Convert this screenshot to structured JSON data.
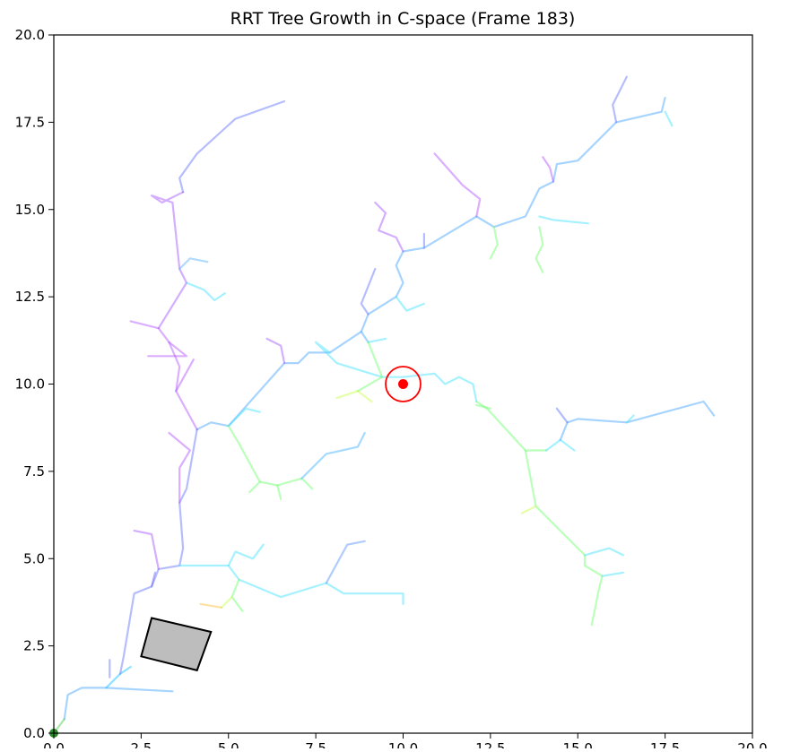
{
  "chart_data": {
    "type": "scatter",
    "title": "RRT Tree Growth in C-space (Frame 183)",
    "xlabel": "",
    "ylabel": "",
    "xlim": [
      0,
      20
    ],
    "ylim": [
      0,
      20
    ],
    "grid": false,
    "x_ticks": [
      0,
      2.5,
      5,
      7.5,
      10,
      12.5,
      15,
      17.5,
      20
    ],
    "x_tick_labels": [
      "0.0",
      "2.5",
      "5.0",
      "7.5",
      "10.0",
      "12.5",
      "15.0",
      "17.5",
      "20.0"
    ],
    "y_ticks": [
      0,
      2.5,
      5,
      7.5,
      10,
      12.5,
      15,
      17.5,
      20
    ],
    "y_tick_labels": [
      "0.0",
      "2.5",
      "5.0",
      "7.5",
      "10.0",
      "12.5",
      "15.0",
      "17.5",
      "20.0"
    ],
    "start": {
      "x": 0.0,
      "y": 0.0,
      "color": "#2a8a2a"
    },
    "goal": {
      "x": 10.0,
      "y": 10.0,
      "radius": 0.5,
      "color": "#ff0000"
    },
    "obstacle": {
      "points": [
        [
          2.8,
          3.3
        ],
        [
          4.5,
          2.9
        ],
        [
          4.1,
          1.8
        ],
        [
          2.5,
          2.2
        ]
      ],
      "fill": "#bdbdbd",
      "edge": "#000000"
    },
    "tree_edges": [
      {
        "c": "#3ccc33",
        "p": [
          [
            0,
            0
          ],
          [
            0.3,
            0.4
          ]
        ]
      },
      {
        "c": "#3aa0ff",
        "p": [
          [
            0.3,
            0.4
          ],
          [
            0.4,
            1.1
          ],
          [
            0.8,
            1.3
          ],
          [
            1.5,
            1.3
          ],
          [
            3.4,
            1.2
          ]
        ]
      },
      {
        "c": "#00bfff",
        "p": [
          [
            1.5,
            1.3
          ],
          [
            1.9,
            1.7
          ],
          [
            2.2,
            1.9
          ]
        ]
      },
      {
        "c": "#5a6cff",
        "p": [
          [
            1.9,
            1.7
          ],
          [
            2.0,
            2.2
          ],
          [
            2.3,
            4.0
          ],
          [
            2.8,
            4.2
          ],
          [
            3.0,
            4.7
          ],
          [
            3.6,
            4.8
          ],
          [
            3.7,
            5.3
          ],
          [
            3.6,
            6.6
          ],
          [
            3.8,
            7.0
          ],
          [
            4.1,
            8.7
          ]
        ]
      },
      {
        "c": "#5a6cff",
        "p": [
          [
            1.6,
            1.6
          ],
          [
            1.6,
            2.1
          ]
        ]
      },
      {
        "c": "#9f4cff",
        "p": [
          [
            3.0,
            4.7
          ],
          [
            2.8,
            5.7
          ],
          [
            2.3,
            5.8
          ]
        ]
      },
      {
        "c": "#6a5cff",
        "p": [
          [
            2.8,
            4.2
          ],
          [
            2.9,
            4.6
          ]
        ]
      },
      {
        "c": "#38e0ff",
        "p": [
          [
            3.6,
            4.8
          ],
          [
            5.0,
            4.8
          ],
          [
            5.2,
            5.2
          ],
          [
            5.7,
            5.0
          ],
          [
            6.0,
            5.4
          ]
        ]
      },
      {
        "c": "#38e0ff",
        "p": [
          [
            5.0,
            4.8
          ],
          [
            5.3,
            4.4
          ],
          [
            6.5,
            3.9
          ],
          [
            7.8,
            4.3
          ],
          [
            8.3,
            4.0
          ],
          [
            10.0,
            4.0
          ],
          [
            10.0,
            3.7
          ]
        ]
      },
      {
        "c": "#4f8cff",
        "p": [
          [
            7.8,
            4.3
          ],
          [
            8.4,
            5.4
          ],
          [
            8.9,
            5.5
          ]
        ]
      },
      {
        "c": "#66ff66",
        "p": [
          [
            5.3,
            4.4
          ],
          [
            5.1,
            3.9
          ],
          [
            5.4,
            3.5
          ]
        ]
      },
      {
        "c": "#c6ff40",
        "p": [
          [
            5.1,
            3.9
          ],
          [
            4.8,
            3.6
          ]
        ]
      },
      {
        "c": "#ffbb33",
        "p": [
          [
            4.8,
            3.6
          ],
          [
            4.2,
            3.7
          ]
        ]
      },
      {
        "c": "#b04cff",
        "p": [
          [
            3.6,
            6.6
          ],
          [
            3.6,
            7.6
          ],
          [
            3.9,
            8.1
          ],
          [
            3.3,
            8.6
          ]
        ]
      },
      {
        "c": "#b04cff",
        "p": [
          [
            4.1,
            8.7
          ],
          [
            3.5,
            9.8
          ],
          [
            3.6,
            10.5
          ],
          [
            3.3,
            11.2
          ],
          [
            3.0,
            11.6
          ],
          [
            2.2,
            11.8
          ]
        ]
      },
      {
        "c": "#b04cff",
        "p": [
          [
            3.5,
            9.8
          ],
          [
            4.0,
            10.7
          ]
        ]
      },
      {
        "c": "#b04cff",
        "p": [
          [
            3.3,
            11.2
          ],
          [
            3.8,
            10.8
          ],
          [
            2.7,
            10.8
          ]
        ]
      },
      {
        "c": "#9f4cff",
        "p": [
          [
            3.0,
            11.6
          ],
          [
            3.8,
            12.9
          ],
          [
            3.6,
            13.3
          ],
          [
            3.4,
            15.2
          ],
          [
            2.8,
            15.4
          ],
          [
            3.1,
            15.2
          ],
          [
            3.7,
            15.5
          ]
        ]
      },
      {
        "c": "#4fb0ff",
        "p": [
          [
            3.6,
            13.3
          ],
          [
            3.9,
            13.6
          ],
          [
            4.4,
            13.5
          ]
        ]
      },
      {
        "c": "#38e0ff",
        "p": [
          [
            3.8,
            12.9
          ],
          [
            4.3,
            12.7
          ],
          [
            4.6,
            12.4
          ],
          [
            4.9,
            12.6
          ]
        ]
      },
      {
        "c": "#5a6cff",
        "p": [
          [
            3.7,
            15.5
          ],
          [
            3.6,
            15.9
          ],
          [
            4.1,
            16.6
          ],
          [
            5.2,
            17.6
          ],
          [
            6.6,
            18.1
          ]
        ]
      },
      {
        "c": "#3aa0ff",
        "p": [
          [
            4.1,
            8.7
          ],
          [
            4.5,
            8.9
          ],
          [
            5.0,
            8.8
          ],
          [
            6.6,
            10.6
          ],
          [
            7.0,
            10.6
          ],
          [
            7.3,
            10.9
          ],
          [
            7.9,
            10.9
          ],
          [
            8.8,
            11.5
          ],
          [
            9.0,
            11.2
          ]
        ]
      },
      {
        "c": "#38e0ff",
        "p": [
          [
            5.0,
            8.8
          ],
          [
            5.5,
            9.3
          ],
          [
            5.9,
            9.2
          ]
        ]
      },
      {
        "c": "#66ff66",
        "p": [
          [
            5.0,
            8.8
          ],
          [
            5.3,
            8.3
          ],
          [
            5.9,
            7.2
          ],
          [
            6.4,
            7.1
          ],
          [
            7.1,
            7.3
          ],
          [
            7.4,
            7.0
          ]
        ]
      },
      {
        "c": "#66ff66",
        "p": [
          [
            5.9,
            7.2
          ],
          [
            5.6,
            6.9
          ]
        ]
      },
      {
        "c": "#66ff66",
        "p": [
          [
            6.4,
            7.1
          ],
          [
            6.5,
            6.7
          ]
        ]
      },
      {
        "c": "#38b0ff",
        "p": [
          [
            7.1,
            7.3
          ],
          [
            7.8,
            8.0
          ],
          [
            8.7,
            8.2
          ],
          [
            8.9,
            8.6
          ]
        ]
      },
      {
        "c": "#9f4cff",
        "p": [
          [
            6.6,
            10.6
          ],
          [
            6.5,
            11.1
          ],
          [
            6.1,
            11.3
          ]
        ]
      },
      {
        "c": "#38e0ff",
        "p": [
          [
            7.9,
            10.9
          ],
          [
            7.5,
            11.2
          ],
          [
            8.1,
            10.6
          ],
          [
            9.4,
            10.2
          ],
          [
            10.0,
            10.2
          ],
          [
            10.9,
            10.3
          ],
          [
            11.2,
            10.0
          ],
          [
            11.6,
            10.2
          ],
          [
            12.0,
            10.0
          ],
          [
            12.1,
            9.5
          ]
        ]
      },
      {
        "c": "#38e0ff",
        "p": [
          [
            9.0,
            11.2
          ],
          [
            9.5,
            11.3
          ]
        ]
      },
      {
        "c": "#66ff66",
        "p": [
          [
            9.0,
            11.2
          ],
          [
            9.4,
            10.2
          ],
          [
            8.7,
            9.8
          ]
        ]
      },
      {
        "c": "#c6ff40",
        "p": [
          [
            8.7,
            9.8
          ],
          [
            8.1,
            9.6
          ]
        ]
      },
      {
        "c": "#c6ff40",
        "p": [
          [
            8.7,
            9.8
          ],
          [
            9.1,
            9.5
          ]
        ]
      },
      {
        "c": "#66ff66",
        "p": [
          [
            12.1,
            9.5
          ],
          [
            12.4,
            9.3
          ],
          [
            13.5,
            8.1
          ],
          [
            14.1,
            8.1
          ]
        ]
      },
      {
        "c": "#66ff66",
        "p": [
          [
            12.1,
            9.4
          ],
          [
            12.5,
            9.3
          ]
        ]
      },
      {
        "c": "#38e0ff",
        "p": [
          [
            14.1,
            8.1
          ],
          [
            14.5,
            8.4
          ],
          [
            14.9,
            8.1
          ]
        ]
      },
      {
        "c": "#3aa0ff",
        "p": [
          [
            14.5,
            8.4
          ],
          [
            14.7,
            8.9
          ],
          [
            15.0,
            9.0
          ],
          [
            16.4,
            8.9
          ],
          [
            18.6,
            9.5
          ],
          [
            18.9,
            9.1
          ]
        ]
      },
      {
        "c": "#38e0ff",
        "p": [
          [
            16.4,
            8.9
          ],
          [
            16.6,
            9.1
          ]
        ]
      },
      {
        "c": "#4f6cff",
        "p": [
          [
            14.7,
            8.9
          ],
          [
            14.4,
            9.3
          ]
        ]
      },
      {
        "c": "#66ff66",
        "p": [
          [
            13.5,
            8.1
          ],
          [
            13.8,
            6.5
          ],
          [
            15.2,
            5.1
          ],
          [
            15.2,
            4.8
          ],
          [
            15.7,
            4.5
          ],
          [
            15.6,
            4.1
          ],
          [
            15.4,
            3.1
          ]
        ]
      },
      {
        "c": "#c6ff40",
        "p": [
          [
            13.8,
            6.5
          ],
          [
            13.4,
            6.3
          ]
        ]
      },
      {
        "c": "#38e0ff",
        "p": [
          [
            15.2,
            5.1
          ],
          [
            15.9,
            5.3
          ],
          [
            16.3,
            5.1
          ]
        ]
      },
      {
        "c": "#38e0ff",
        "p": [
          [
            15.7,
            4.5
          ],
          [
            16.3,
            4.6
          ]
        ]
      },
      {
        "c": "#3aa0ff",
        "p": [
          [
            8.8,
            11.5
          ],
          [
            9.0,
            12.0
          ],
          [
            9.8,
            12.5
          ],
          [
            10.0,
            12.9
          ],
          [
            9.8,
            13.4
          ],
          [
            10.0,
            13.8
          ],
          [
            10.6,
            13.9
          ],
          [
            12.1,
            14.8
          ],
          [
            12.6,
            14.5
          ],
          [
            13.5,
            14.8
          ],
          [
            13.9,
            15.6
          ],
          [
            14.3,
            15.8
          ],
          [
            14.4,
            16.3
          ],
          [
            15.0,
            16.4
          ],
          [
            16.1,
            17.5
          ],
          [
            17.4,
            17.8
          ],
          [
            17.5,
            18.2
          ]
        ]
      },
      {
        "c": "#5a6cff",
        "p": [
          [
            9.0,
            12.0
          ],
          [
            8.8,
            12.3
          ],
          [
            9.2,
            13.3
          ]
        ]
      },
      {
        "c": "#38e0ff",
        "p": [
          [
            9.8,
            12.5
          ],
          [
            10.1,
            12.1
          ],
          [
            10.6,
            12.3
          ]
        ]
      },
      {
        "c": "#9f4cff",
        "p": [
          [
            10.0,
            13.8
          ],
          [
            9.8,
            14.2
          ],
          [
            9.3,
            14.4
          ],
          [
            9.5,
            14.9
          ],
          [
            9.2,
            15.2
          ]
        ]
      },
      {
        "c": "#5a6cff",
        "p": [
          [
            10.6,
            13.9
          ],
          [
            10.6,
            14.3
          ]
        ]
      },
      {
        "c": "#b04cff",
        "p": [
          [
            12.1,
            14.8
          ],
          [
            12.2,
            15.3
          ],
          [
            11.7,
            15.7
          ],
          [
            10.9,
            16.6
          ]
        ]
      },
      {
        "c": "#66ff66",
        "p": [
          [
            12.6,
            14.5
          ],
          [
            12.7,
            14.0
          ],
          [
            12.5,
            13.6
          ]
        ]
      },
      {
        "c": "#38e0ff",
        "p": [
          [
            13.9,
            14.8
          ],
          [
            14.3,
            14.7
          ],
          [
            15.3,
            14.6
          ]
        ]
      },
      {
        "c": "#66ff66",
        "p": [
          [
            13.9,
            14.5
          ],
          [
            14.0,
            14.0
          ],
          [
            13.8,
            13.6
          ],
          [
            14.0,
            13.2
          ]
        ]
      },
      {
        "c": "#b04cff",
        "p": [
          [
            14.3,
            15.8
          ],
          [
            14.2,
            16.2
          ],
          [
            14.0,
            16.5
          ]
        ]
      },
      {
        "c": "#5a6cff",
        "p": [
          [
            16.1,
            17.5
          ],
          [
            16.0,
            18.0
          ],
          [
            16.4,
            18.8
          ]
        ]
      },
      {
        "c": "#38e0ff",
        "p": [
          [
            17.5,
            17.8
          ],
          [
            17.7,
            17.4
          ]
        ]
      }
    ]
  }
}
